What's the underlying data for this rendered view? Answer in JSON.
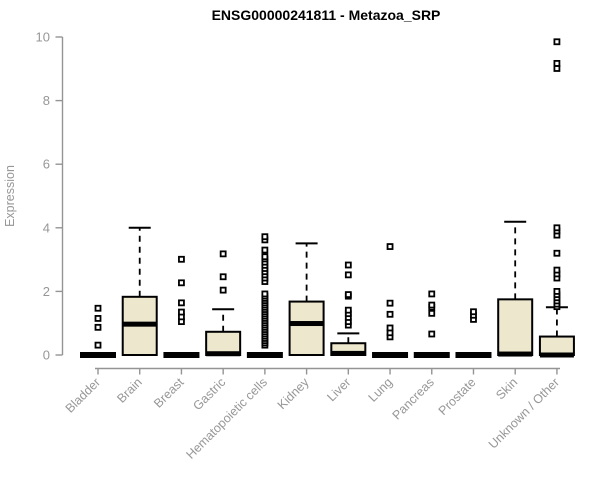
{
  "chart_data": {
    "type": "boxplot",
    "title": "ENSG00000241811 - Metazoa_SRP",
    "ylabel": "Expression",
    "xlabel": "",
    "ylim": [
      0,
      10
    ],
    "yticks": [
      0,
      2,
      4,
      6,
      8,
      10
    ],
    "grid": false,
    "legend": "none",
    "categories": [
      "Bladder",
      "Brain",
      "Breast",
      "Gastric",
      "Hematopoietic cells",
      "Kidney",
      "Liver",
      "Lung",
      "Pancreas",
      "Prostate",
      "Skin",
      "Unknown / Other"
    ],
    "series": [
      {
        "name": "Bladder",
        "q1": 0,
        "median": 0,
        "q3": 0,
        "whisker_low": 0,
        "whisker_high": 0,
        "outliers": [
          0.31,
          0.87,
          1.15,
          1.47
        ]
      },
      {
        "name": "Brain",
        "q1": 0,
        "median": 0.97,
        "q3": 1.83,
        "whisker_low": 0,
        "whisker_high": 4.0,
        "outliers": []
      },
      {
        "name": "Breast",
        "q1": 0,
        "median": 0,
        "q3": 0,
        "whisker_low": 0,
        "whisker_high": 0,
        "outliers": [
          1.05,
          1.2,
          1.35,
          1.64,
          2.27,
          3.01
        ]
      },
      {
        "name": "Gastric",
        "q1": 0,
        "median": 0.04,
        "q3": 0.73,
        "whisker_low": 0,
        "whisker_high": 1.44,
        "outliers": [
          2.04,
          2.46,
          3.18
        ]
      },
      {
        "name": "Hematopoietic cells",
        "q1": 0,
        "median": 0,
        "q3": 0,
        "whisker_low": 0,
        "whisker_high": 0,
        "outliers": [
          0.31,
          0.38,
          0.45,
          0.52,
          0.59,
          0.66,
          0.73,
          0.8,
          0.87,
          0.94,
          1.01,
          1.08,
          1.15,
          1.22,
          1.29,
          1.36,
          1.43,
          1.5,
          1.57,
          1.64,
          1.71,
          1.78,
          1.85,
          1.92,
          2.31,
          2.42,
          2.52,
          2.62,
          2.72,
          2.82,
          2.92,
          3.02,
          3.09,
          3.3,
          3.62,
          3.72
        ]
      },
      {
        "name": "Kidney",
        "q1": 0,
        "median": 0.99,
        "q3": 1.68,
        "whisker_low": 0,
        "whisker_high": 3.51,
        "outliers": []
      },
      {
        "name": "Liver",
        "q1": 0,
        "median": 0.05,
        "q3": 0.37,
        "whisker_low": 0,
        "whisker_high": 0.68,
        "outliers": [
          0.94,
          1.05,
          1.18,
          1.3,
          1.41,
          1.85,
          1.9,
          2.52,
          2.83
        ]
      },
      {
        "name": "Lung",
        "q1": 0,
        "median": 0,
        "q3": 0,
        "whisker_low": 0,
        "whisker_high": 0,
        "outliers": [
          0.57,
          0.7,
          0.85,
          1.28,
          1.63,
          3.41
        ]
      },
      {
        "name": "Pancreas",
        "q1": 0,
        "median": 0,
        "q3": 0,
        "whisker_low": 0,
        "whisker_high": 0,
        "outliers": [
          0.66,
          1.31,
          1.5,
          1.57,
          1.92
        ]
      },
      {
        "name": "Prostate",
        "q1": 0,
        "median": 0,
        "q3": 0,
        "whisker_low": 0,
        "whisker_high": 0,
        "outliers": [
          1.12,
          1.25,
          1.36
        ]
      },
      {
        "name": "Skin",
        "q1": 0,
        "median": 0.03,
        "q3": 1.75,
        "whisker_low": 0,
        "whisker_high": 4.19,
        "outliers": []
      },
      {
        "name": "Unknown / Other",
        "q1": 0,
        "median": 0,
        "q3": 0.58,
        "whisker_low": 0,
        "whisker_high": 1.5,
        "outliers": [
          1.52,
          1.6,
          1.7,
          1.8,
          1.9,
          2.0,
          2.42,
          2.55,
          2.67,
          3.2,
          3.77,
          3.9,
          4.0,
          9.01,
          9.17,
          9.85
        ]
      }
    ],
    "colors": {
      "box_fill": "#ece7cd",
      "box_border": "#000000",
      "median": "#000000",
      "outlier": "#000000",
      "axis": "#949494",
      "tick_label": "#979797",
      "title": "#000000",
      "background": "#ffffff"
    }
  }
}
